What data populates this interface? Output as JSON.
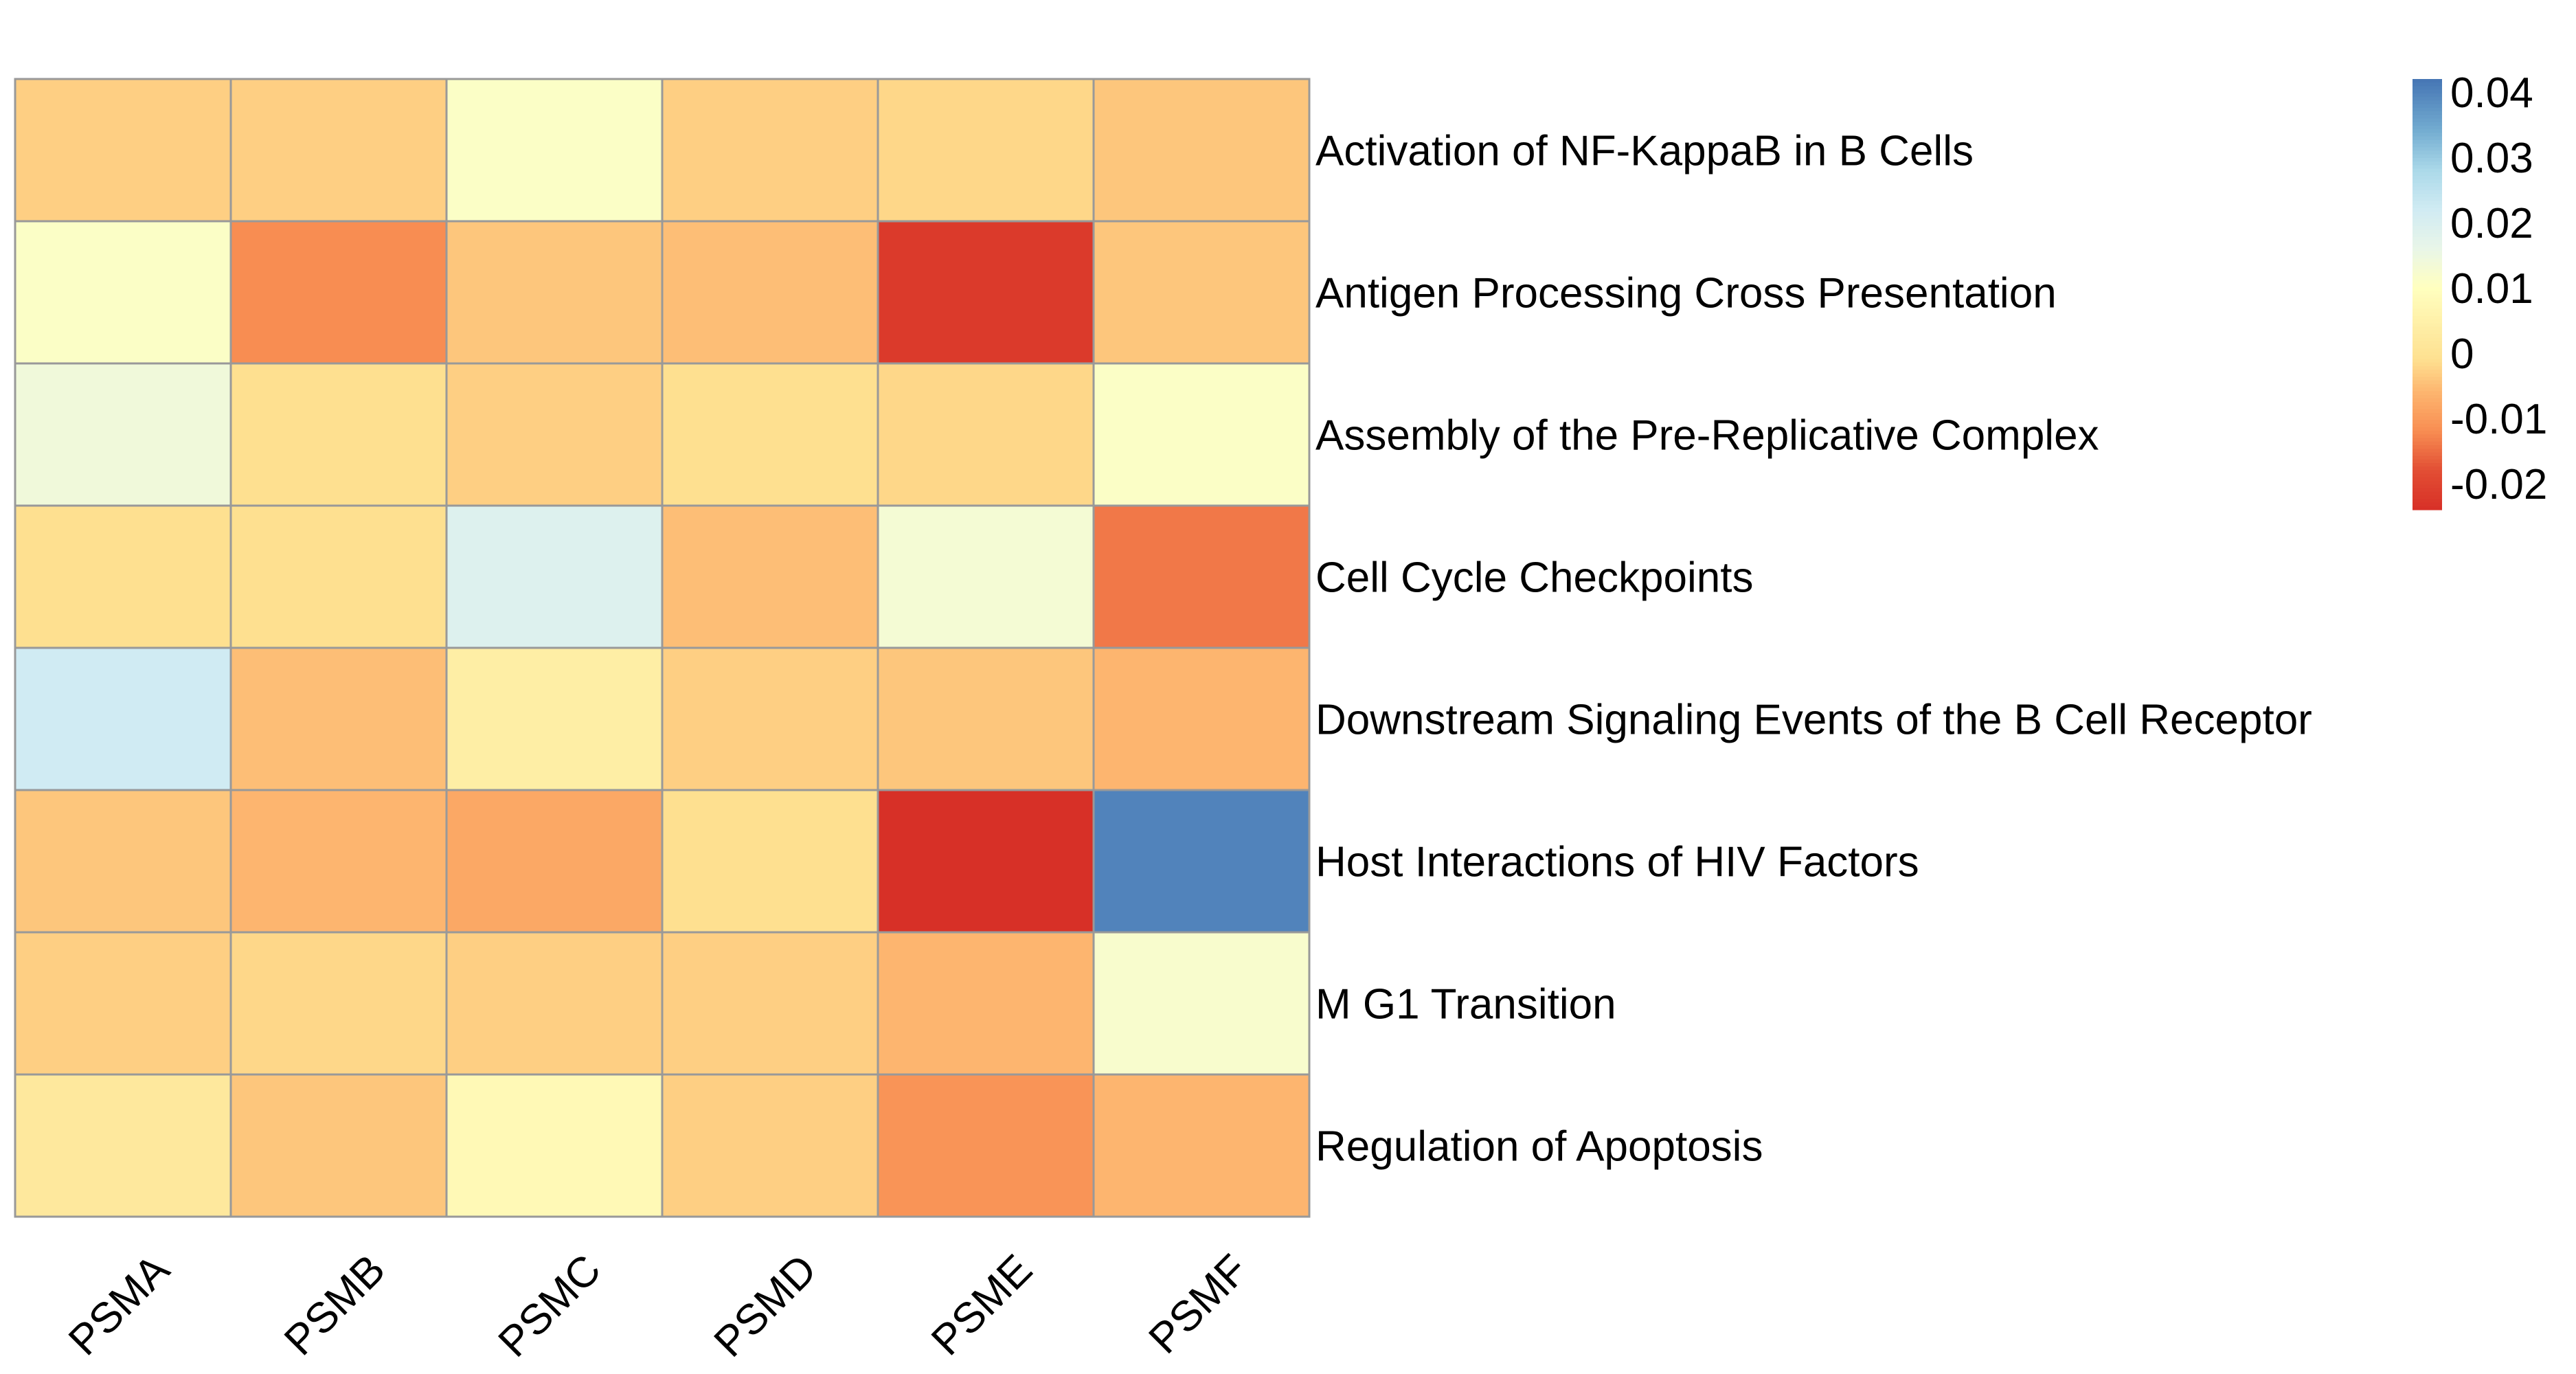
{
  "chart_data": {
    "type": "heatmap",
    "columns": [
      "PSMA",
      "PSMB",
      "PSMC",
      "PSMD",
      "PSME",
      "PSMF"
    ],
    "rows": [
      "Activation of NF-KappaB in B Cells",
      "Antigen Processing Cross Presentation",
      "Assembly of the Pre-Replicative Complex",
      "Cell Cycle Checkpoints",
      "Downstream Signaling Events of the B Cell Receptor",
      "Host Interactions of HIV Factors",
      "M G1 Transition",
      "Regulation of Apoptosis"
    ],
    "values": [
      [
        -0.003,
        -0.003,
        0.011,
        -0.003,
        -0.002,
        -0.004
      ],
      [
        0.011,
        -0.012,
        -0.004,
        -0.005,
        -0.022,
        -0.004
      ],
      [
        0.014,
        -0.001,
        -0.003,
        -0.001,
        -0.002,
        0.011
      ],
      [
        -0.001,
        -0.001,
        0.019,
        -0.005,
        0.013,
        -0.014
      ],
      [
        0.022,
        -0.005,
        0.004,
        -0.003,
        -0.004,
        -0.006
      ],
      [
        -0.004,
        -0.006,
        -0.008,
        -0.001,
        -0.024,
        0.04
      ],
      [
        -0.003,
        -0.002,
        -0.003,
        -0.003,
        -0.006,
        0.012
      ],
      [
        0.002,
        -0.004,
        0.008,
        -0.003,
        -0.011,
        -0.006
      ]
    ],
    "colorbar": {
      "ticks": [
        0.04,
        0.03,
        0.02,
        0.01,
        0,
        -0.01,
        -0.02
      ],
      "tick_labels": [
        "0.04",
        "0.03",
        "0.02",
        "0.01",
        "0",
        "-0.01",
        "-0.02"
      ],
      "range": [
        -0.024,
        0.042
      ],
      "stops": [
        {
          "value": -0.024,
          "color": "#d73027"
        },
        {
          "value": -0.018,
          "color": "#e24e34"
        },
        {
          "value": -0.012,
          "color": "#f88d52"
        },
        {
          "value": -0.006,
          "color": "#fdb56f"
        },
        {
          "value": -0.001,
          "color": "#fee090"
        },
        {
          "value": 0.01,
          "color": "#ffffbf"
        },
        {
          "value": 0.016,
          "color": "#e9f6e8"
        },
        {
          "value": 0.022,
          "color": "#d0ebf3"
        },
        {
          "value": 0.028,
          "color": "#abd9e9"
        },
        {
          "value": 0.034,
          "color": "#74add1"
        },
        {
          "value": 0.042,
          "color": "#4575b4"
        }
      ]
    },
    "grid_color": "#999999",
    "legend_placement": "right"
  }
}
